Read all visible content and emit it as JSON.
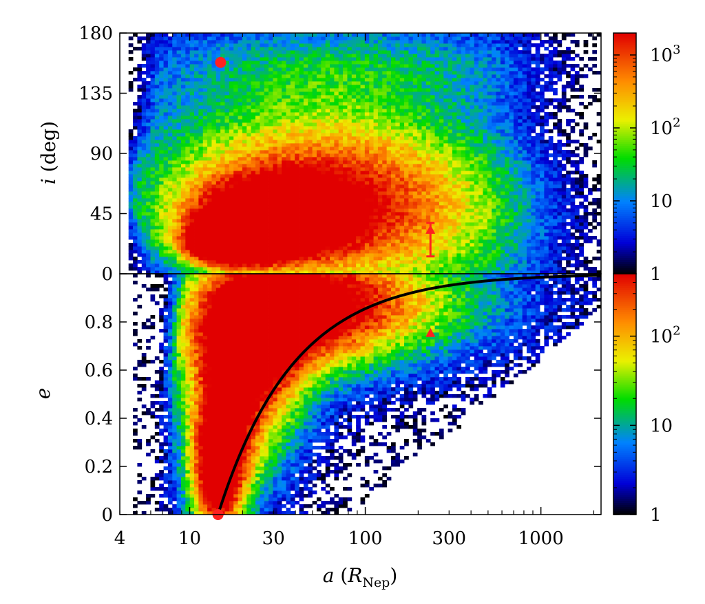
{
  "chart_data": [
    {
      "panel": "top",
      "type": "heatmap",
      "xscale": "log",
      "xlim": [
        4,
        2200
      ],
      "ylim": [
        0,
        180
      ],
      "ylabel": {
        "symbol": "i",
        "unit": " (deg)"
      },
      "yticks": [
        "0",
        "45",
        "90",
        "135",
        "180"
      ],
      "ytick_values": [
        0,
        45,
        90,
        135,
        180
      ],
      "colorbar": {
        "scale": "log",
        "range": [
          1,
          2000
        ],
        "ticks": [
          {
            "value": 1,
            "label": "1"
          },
          {
            "value": 10,
            "label": "10"
          },
          {
            "value": 100,
            "base": "10",
            "exp": "2"
          },
          {
            "value": 1000,
            "base": "10",
            "exp": "3"
          }
        ]
      },
      "density_peaks": [
        {
          "a": 12,
          "i": 18,
          "counts": 1500
        },
        {
          "a": 20,
          "i": 30,
          "counts": 800
        },
        {
          "a": 30,
          "i": 35,
          "counts": 300
        }
      ],
      "markers": [
        {
          "shape": "circle",
          "color": "#ff2020",
          "a": 15,
          "i": 158
        },
        {
          "shape": "triangle",
          "color": "#ff2020",
          "a": 235,
          "i": 33,
          "yerr": [
            13,
            38
          ]
        }
      ]
    },
    {
      "panel": "bottom",
      "type": "heatmap",
      "xscale": "log",
      "xlim": [
        4,
        2200
      ],
      "ylim": [
        0,
        1
      ],
      "xlabel": {
        "symbol": "a",
        "open": " (",
        "R": "R",
        "sub": "Nep",
        "close": ")"
      },
      "ylabel": {
        "symbol": "e"
      },
      "xticks": [
        "4",
        "10",
        "30",
        "100",
        "300",
        "1000"
      ],
      "xtick_values": [
        4,
        10,
        30,
        100,
        300,
        1000
      ],
      "yticks": [
        "0",
        "0.2",
        "0.4",
        "0.6",
        "0.8"
      ],
      "ytick_values": [
        0,
        0.2,
        0.4,
        0.6,
        0.8
      ],
      "colorbar": {
        "scale": "log",
        "range": [
          1,
          500
        ],
        "ticks": [
          {
            "value": 1,
            "label": "1"
          },
          {
            "value": 10,
            "label": "10"
          },
          {
            "value": 100,
            "base": "10",
            "exp": "2"
          }
        ]
      },
      "curve": {
        "color": "#000000",
        "relation": "e = 1 - 14.5/a",
        "a_start": 14.5
      },
      "markers": [
        {
          "shape": "circle",
          "color": "#ff2020",
          "a": 14.5,
          "e": 0.0
        },
        {
          "shape": "triangle",
          "color": "#ff2020",
          "a": 235,
          "e": 0.755
        }
      ]
    }
  ]
}
